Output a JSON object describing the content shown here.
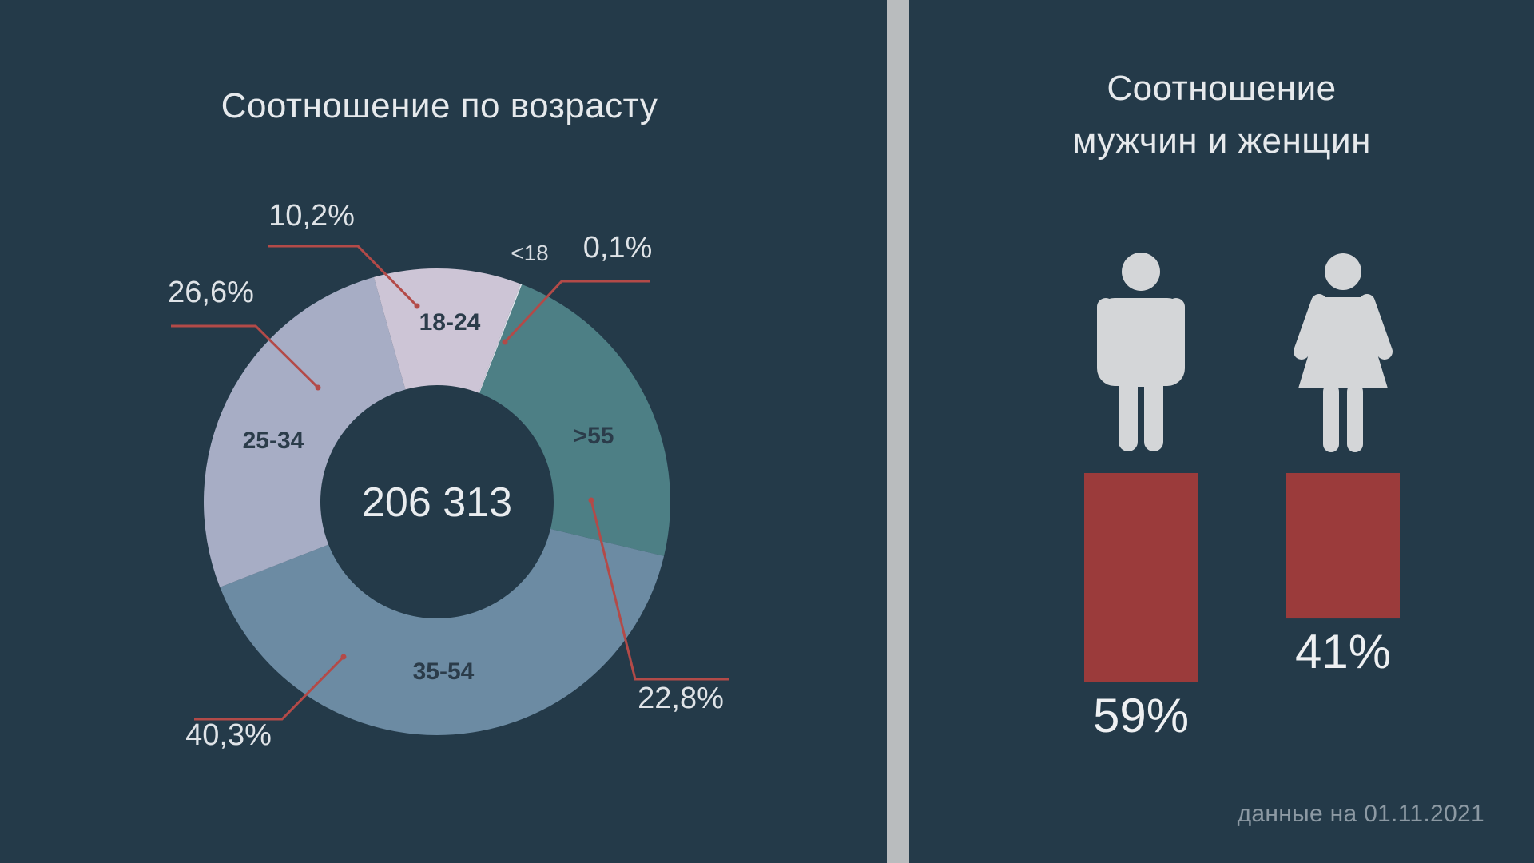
{
  "chart_data": [
    {
      "type": "pie",
      "title": "Соотношение по возрасту",
      "center_label": "206 313",
      "slices": [
        {
          "label": "<18",
          "value": 0.1,
          "value_label": "0,1%",
          "color": "#dde3ea"
        },
        {
          "label": ">55",
          "value": 22.8,
          "value_label": "22,8%",
          "color": "#4d7f85"
        },
        {
          "label": "35-54",
          "value": 40.3,
          "value_label": "40,3%",
          "color": "#6c8ba3"
        },
        {
          "label": "25-34",
          "value": 26.6,
          "value_label": "26,6%",
          "color": "#a7adc5"
        },
        {
          "label": "18-24",
          "value": 10.2,
          "value_label": "10,2%",
          "color": "#cdc5d6"
        }
      ],
      "leader_color": "#b34a48"
    },
    {
      "type": "bar",
      "title_lines": [
        "Соотношение",
        "мужчин и женщин"
      ],
      "categories": [
        "male",
        "female"
      ],
      "icons": [
        "man-icon",
        "woman-icon"
      ],
      "values": [
        59,
        41
      ],
      "value_labels": [
        "59%",
        "41%"
      ],
      "ylim": [
        0,
        59
      ],
      "bar_color": "#9b3b3b",
      "icon_color": "#d4d6d8"
    }
  ],
  "footnote": "данные на 01.11.2021"
}
